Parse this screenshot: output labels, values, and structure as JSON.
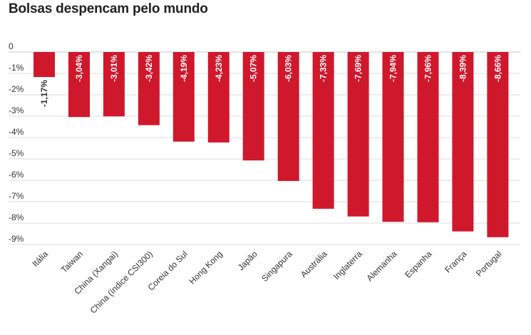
{
  "chart_data": {
    "type": "bar",
    "title": "Bolsas despencam pelo mundo",
    "xlabel": "",
    "ylabel": "",
    "ylim": [
      -9.5,
      0
    ],
    "yticks": [
      0,
      -1,
      -2,
      -3,
      -4,
      -5,
      -6,
      -7,
      -8,
      -9
    ],
    "ytick_labels": [
      "0",
      "-1%",
      "-2%",
      "-3%",
      "-4%",
      "-5%",
      "-6%",
      "-7%",
      "-8%",
      "-9%"
    ],
    "grid": true,
    "legend": "none",
    "bar_color": "#d0182d",
    "label_color_inside": "#ffffff",
    "label_color_outside": "#333333",
    "categories": [
      "Itália",
      "Taiwan",
      "China (Xangai)",
      "China (índice CSI300)",
      "Coreia do Sul",
      "Hong Kong",
      "Japão",
      "Singapura",
      "Austrália",
      "Inglaterra",
      "Alemanha",
      "Espanha",
      "França",
      "Portugal"
    ],
    "values": [
      -1.17,
      -3.04,
      -3.01,
      -3.42,
      -4.19,
      -4.23,
      -5.07,
      -6.03,
      -7.33,
      -7.69,
      -7.94,
      -7.96,
      -8.39,
      -8.66
    ],
    "data_labels": [
      "-1,17%",
      "-3,04%",
      "-3,01%",
      "-3,42%",
      "-4,19%",
      "-4,23%",
      "-5,07%",
      "-6,03%",
      "-7,33%",
      "-7,69%",
      "-7,94%",
      "-7,96%",
      "-8,39%",
      "-8,66%"
    ],
    "label_position": [
      "outside",
      "inside",
      "inside",
      "inside",
      "inside",
      "inside",
      "inside",
      "inside",
      "inside",
      "inside",
      "inside",
      "inside",
      "inside",
      "inside"
    ]
  }
}
